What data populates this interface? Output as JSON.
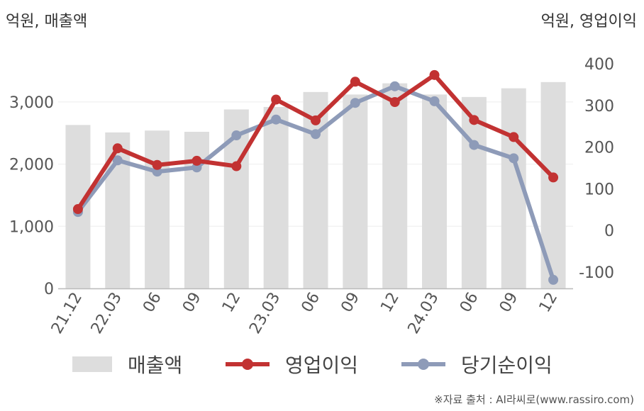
{
  "unit_left": "억원, 매출액",
  "unit_right": "억원, 영업이익",
  "source": "※자료 출처 : AI라씨로(www.rassiro.com)",
  "colors": {
    "revenue": "#dddddd",
    "operating_profit": "#c23232",
    "net_income": "#8e9bb8"
  },
  "legend": {
    "revenue": "매출액",
    "operating_profit": "영업이익",
    "net_income": "당기순이익"
  },
  "chart_data": {
    "type": "bar",
    "categories": [
      "21.12",
      "22.03",
      "06",
      "09",
      "12",
      "23.03",
      "06",
      "09",
      "12",
      "24.03",
      "06",
      "09",
      "12"
    ],
    "left_axis": {
      "ticks": [
        "0",
        "1,000",
        "2,000",
        "3,000"
      ],
      "ylim": [
        0,
        3700
      ]
    },
    "right_axis": {
      "ticks": [
        "-100",
        "0",
        "100",
        "200",
        "300",
        "400"
      ],
      "ylim": [
        -140,
        400
      ]
    },
    "grid": true,
    "legend_position": "bottom",
    "series": [
      {
        "name": "매출액",
        "type": "bar",
        "axis": "left",
        "values": [
          2630,
          2510,
          2540,
          2520,
          2880,
          2920,
          3160,
          3120,
          3300,
          3120,
          3080,
          3220,
          3320
        ]
      },
      {
        "name": "영업이익",
        "type": "line",
        "axis": "right",
        "values": [
          51,
          197,
          157,
          167,
          154,
          314,
          264,
          357,
          308,
          373,
          265,
          224,
          127
        ]
      },
      {
        "name": "당기순이익",
        "type": "line",
        "axis": "right",
        "values": [
          44,
          168,
          141,
          151,
          228,
          266,
          231,
          306,
          346,
          310,
          205,
          173,
          -119
        ]
      }
    ]
  }
}
